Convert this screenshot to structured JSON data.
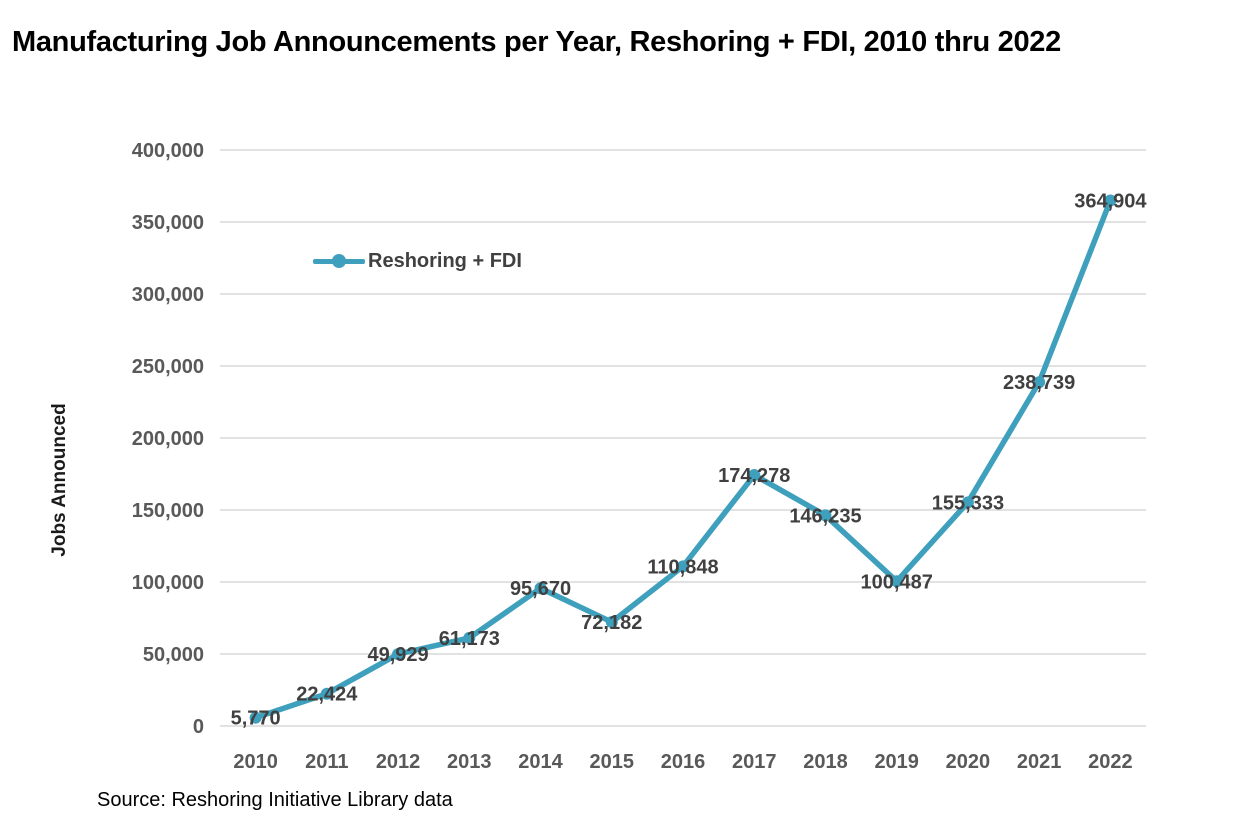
{
  "title": "Manufacturing Job Announcements per Year, Reshoring + FDI, 2010 thru 2022",
  "source_note": "Source: Reshoring Initiative Library data",
  "legend": {
    "label": "Reshoring + FDI"
  },
  "colors": {
    "line": "#3EA0BC",
    "grid": "#D9D9D9",
    "tick_text": "#595959",
    "data_label": "#404040",
    "title_text": "#000000"
  },
  "chart_data": {
    "type": "line",
    "title": "Manufacturing Job Announcements per Year, Reshoring + FDI, 2010 thru 2022",
    "categories": [
      "2010",
      "2011",
      "2012",
      "2013",
      "2014",
      "2015",
      "2016",
      "2017",
      "2018",
      "2019",
      "2020",
      "2021",
      "2022"
    ],
    "series": [
      {
        "name": "Reshoring + FDI",
        "values": [
          5770,
          22424,
          49929,
          61173,
          95670,
          72182,
          110848,
          174278,
          146235,
          100487,
          155333,
          238739,
          364904
        ],
        "value_labels": [
          "5,770",
          "22,424",
          "49,929",
          "61,173",
          "95,670",
          "72,182",
          "110,848",
          "174,278",
          "146,235",
          "100,487",
          "155,333",
          "238,739",
          "364,904"
        ]
      }
    ],
    "xlabel": "",
    "ylabel": "Jobs Announced",
    "ylim": [
      0,
      400000
    ],
    "ytick_step": 50000,
    "ytick_labels": [
      "0",
      "50,000",
      "100,000",
      "150,000",
      "200,000",
      "250,000",
      "300,000",
      "350,000",
      "400,000"
    ],
    "grid": "horizontal",
    "legend_position": "inside-top-left",
    "marker": "circle"
  }
}
